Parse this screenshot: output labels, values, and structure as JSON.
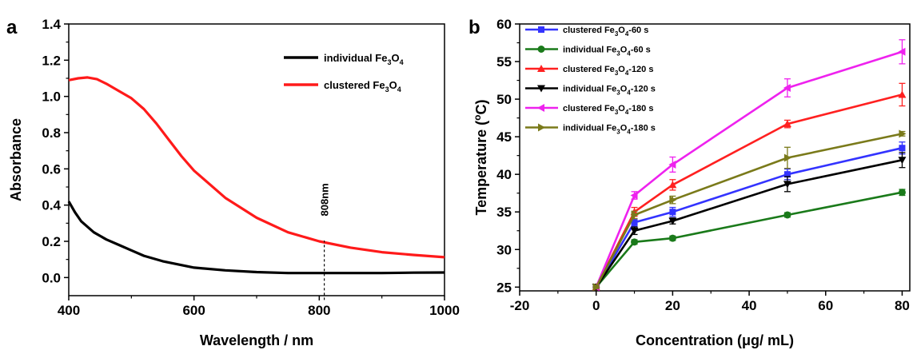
{
  "chart_data": [
    {
      "id": "a",
      "type": "line",
      "panel_label": "a",
      "xlabel": "Wavelength / nm",
      "ylabel": "Absorbance",
      "xlim": [
        400,
        1000
      ],
      "ylim": [
        -0.1,
        1.4
      ],
      "xticks": [
        400,
        600,
        800,
        1000
      ],
      "yticks": [
        0.0,
        0.2,
        0.4,
        0.6,
        0.8,
        1.0,
        1.2,
        1.4
      ],
      "legend_position": "top-right",
      "annotation": {
        "text": "808nm",
        "x": 808
      },
      "series": [
        {
          "name": "individual Fe3O4",
          "label_base": "individual Fe",
          "label_sub1": "3",
          "label_mid": "O",
          "label_sub2": "4",
          "label_end": "",
          "color": "#000000",
          "x": [
            400,
            410,
            420,
            440,
            460,
            480,
            500,
            520,
            550,
            600,
            650,
            700,
            750,
            800,
            850,
            900,
            950,
            1000
          ],
          "y": [
            0.42,
            0.36,
            0.31,
            0.25,
            0.21,
            0.18,
            0.15,
            0.12,
            0.09,
            0.055,
            0.04,
            0.03,
            0.025,
            0.025,
            0.025,
            0.025,
            0.027,
            0.028
          ]
        },
        {
          "name": "clustered Fe3O4",
          "label_base": "clustered Fe",
          "label_sub1": "3",
          "label_mid": "O",
          "label_sub2": "4",
          "label_end": "",
          "color": "#ff1a1a",
          "x": [
            400,
            415,
            430,
            445,
            460,
            480,
            500,
            520,
            540,
            560,
            580,
            600,
            650,
            700,
            750,
            800,
            850,
            900,
            950,
            1000
          ],
          "y": [
            1.09,
            1.1,
            1.105,
            1.095,
            1.07,
            1.03,
            0.99,
            0.93,
            0.85,
            0.76,
            0.67,
            0.59,
            0.44,
            0.33,
            0.25,
            0.2,
            0.165,
            0.14,
            0.125,
            0.112
          ]
        }
      ]
    },
    {
      "id": "b",
      "type": "line",
      "panel_label": "b",
      "xlabel": "Concentration (μg/ mL)",
      "ylabel": "Temperature (",
      "ylabel_sup": "o",
      "ylabel_end": "C)",
      "xlim": [
        -20,
        82
      ],
      "ylim": [
        24.5,
        60
      ],
      "xticks": [
        -20,
        0,
        20,
        40,
        60,
        80
      ],
      "yticks": [
        25,
        30,
        35,
        40,
        45,
        50,
        55,
        60
      ],
      "legend_position": "top-left",
      "x": [
        0,
        10,
        20,
        50,
        80
      ],
      "series": [
        {
          "name": "clustered Fe3O4-60 s",
          "label_base": "clustered Fe",
          "label_sub1": "3",
          "label_mid": "O",
          "label_sub2": "4",
          "label_end": "-60 s",
          "color": "#3333ff",
          "marker": "square",
          "values": [
            25.0,
            33.6,
            35.0,
            40.0,
            43.5
          ],
          "errors": [
            0.2,
            0.5,
            0.6,
            0.7,
            0.8
          ]
        },
        {
          "name": "individual Fe3O4-60 s",
          "label_base": "individual Fe",
          "label_sub1": "3",
          "label_mid": "O",
          "label_sub2": "4",
          "label_end": "-60 s",
          "color": "#1a7a1a",
          "marker": "circle",
          "values": [
            25.0,
            31.0,
            31.5,
            34.6,
            37.6
          ],
          "errors": [
            0.2,
            0.3,
            0.3,
            0.3,
            0.4
          ]
        },
        {
          "name": "clustered Fe3O4-120 s",
          "label_base": "clustered Fe",
          "label_sub1": "3",
          "label_mid": "O",
          "label_sub2": "4",
          "label_end": "-120 s",
          "color": "#ff2020",
          "marker": "triangle-up",
          "values": [
            25.0,
            35.0,
            38.6,
            46.7,
            50.6
          ],
          "errors": [
            0.2,
            0.6,
            0.7,
            0.5,
            1.5
          ]
        },
        {
          "name": "individual Fe3O4-120 s",
          "label_base": "individual Fe",
          "label_sub1": "3",
          "label_mid": "O",
          "label_sub2": "4",
          "label_end": "-120 s",
          "color": "#000000",
          "marker": "triangle-down",
          "values": [
            25.0,
            32.5,
            33.8,
            38.7,
            41.9
          ],
          "errors": [
            0.2,
            0.5,
            0.4,
            1.0,
            1.0
          ]
        },
        {
          "name": "clustered Fe3O4-180 s",
          "label_base": "clustered Fe",
          "label_sub1": "3",
          "label_mid": "O",
          "label_sub2": "4",
          "label_end": "-180 s",
          "color": "#ee22ee",
          "marker": "triangle-left",
          "values": [
            25.0,
            37.2,
            41.3,
            51.5,
            56.3
          ],
          "errors": [
            0.2,
            0.5,
            1.0,
            1.2,
            1.6
          ]
        },
        {
          "name": "individual Fe3O4-180 s",
          "label_base": "individual Fe",
          "label_sub1": "3",
          "label_mid": "O",
          "label_sub2": "4",
          "label_end": "-180 s",
          "color": "#7a7a1a",
          "marker": "triangle-right",
          "values": [
            25.0,
            34.6,
            36.6,
            42.2,
            45.4
          ],
          "errors": [
            0.2,
            0.5,
            0.5,
            1.4,
            0.3
          ]
        }
      ]
    }
  ]
}
